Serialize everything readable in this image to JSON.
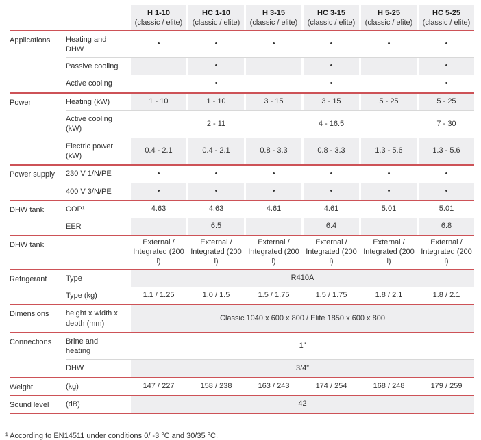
{
  "columns": [
    {
      "model": "H 1-10",
      "variant": "(classic / elite)"
    },
    {
      "model": "HC 1-10",
      "variant": "(classic / elite)"
    },
    {
      "model": "H 3-15",
      "variant": "(classic / elite)"
    },
    {
      "model": "HC 3-15",
      "variant": "(classic / elite)"
    },
    {
      "model": "H 5-25",
      "variant": "(classic / elite)"
    },
    {
      "model": "HC 5-25",
      "variant": "(classic / elite)"
    }
  ],
  "groups": [
    {
      "label": "Applications",
      "rows": [
        {
          "sub": "Heating and DHW",
          "cells": [
            "•",
            "•",
            "•",
            "•",
            "•",
            "•"
          ],
          "shaded": false
        },
        {
          "sub": "Passive cooling",
          "cells": [
            "",
            "•",
            "",
            "•",
            "",
            "•"
          ],
          "shaded": true
        },
        {
          "sub": "Active cooling",
          "cells": [
            "",
            "•",
            "",
            "•",
            "",
            "•"
          ],
          "shaded": false
        }
      ]
    },
    {
      "label": "Power",
      "rows": [
        {
          "sub": "Heating (kW)",
          "cells": [
            "1 - 10",
            "1 - 10",
            "3 - 15",
            "3 - 15",
            "5 - 25",
            "5 - 25"
          ],
          "shaded": true
        },
        {
          "sub": "Active cooling (kW)",
          "cells": [
            "",
            "2 - 11",
            "",
            "4 - 16.5",
            "",
            "7 - 30"
          ],
          "shaded": false
        },
        {
          "sub": "Electric power (kW)",
          "cells": [
            "0.4 - 2.1",
            "0.4 - 2.1",
            "0.8 - 3.3",
            "0.8 - 3.3",
            "1.3 - 5.6",
            "1.3 - 5.6"
          ],
          "shaded": true
        }
      ]
    },
    {
      "label": "Power supply",
      "rows": [
        {
          "sub": "230 V 1/N/PE⁻",
          "cells": [
            "•",
            "•",
            "•",
            "•",
            "•",
            "•"
          ],
          "shaded": false
        },
        {
          "sub": "400 V 3/N/PE⁻",
          "cells": [
            "•",
            "•",
            "•",
            "•",
            "•",
            "•"
          ],
          "shaded": true
        }
      ]
    },
    {
      "label": "DHW tank",
      "rows": [
        {
          "sub": "COP¹",
          "cells": [
            "4.63",
            "4.63",
            "4.61",
            "4.61",
            "5.01",
            "5.01"
          ],
          "shaded": false
        },
        {
          "sub": "EER",
          "cells": [
            "",
            "6.5",
            "",
            "6.4",
            "",
            "6.8"
          ],
          "shaded": true
        }
      ]
    },
    {
      "label": "DHW tank",
      "rows": [
        {
          "sub": "",
          "cells": [
            "External / Integrated (200 l)",
            "External / Integrated (200 l)",
            "External / Integrated (200 l)",
            "External / Integrated (200 l)",
            "External / Integrated (200 l)",
            "External / Integrated (200 l)"
          ],
          "shaded": false
        }
      ]
    },
    {
      "label": "Refrigerant",
      "rows": [
        {
          "sub": "Type",
          "span": "R410A",
          "shaded": true
        },
        {
          "sub": "Type  (kg)",
          "cells": [
            "1.1 / 1.25",
            "1.0 / 1.5",
            "1.5 / 1.75",
            "1.5 / 1.75",
            "1.8 / 2.1",
            "1.8 / 2.1"
          ],
          "shaded": false
        }
      ]
    },
    {
      "label": "Dimensions",
      "rows": [
        {
          "sub": "height x width x depth (mm)",
          "span": "Classic 1040 x 600 x 800  /  Elite 1850 x 600 x 800",
          "shaded": true
        }
      ]
    },
    {
      "label": "Connections",
      "rows": [
        {
          "sub": "Brine and heating",
          "span": "1”",
          "shaded": false
        },
        {
          "sub": "DHW",
          "span": "3/4”",
          "shaded": true
        }
      ]
    },
    {
      "label": "Weight",
      "rows": [
        {
          "sub": "(kg)",
          "cells": [
            "147 / 227",
            "158 / 238",
            "163 / 243",
            "174 / 254",
            "168 / 248",
            "179 / 259"
          ],
          "shaded": false
        }
      ]
    },
    {
      "label": "Sound level",
      "rows": [
        {
          "sub": "(dB)",
          "span": "42",
          "shaded": true
        }
      ]
    }
  ],
  "footnote": "¹ According to EN14511 under conditions 0/ -3 °C and 30/35 °C.",
  "colors": {
    "accent_red": "#cd5257",
    "row_shade": "#eeeef0",
    "text": "#333333",
    "inner_separator": "#d8d8d8"
  }
}
